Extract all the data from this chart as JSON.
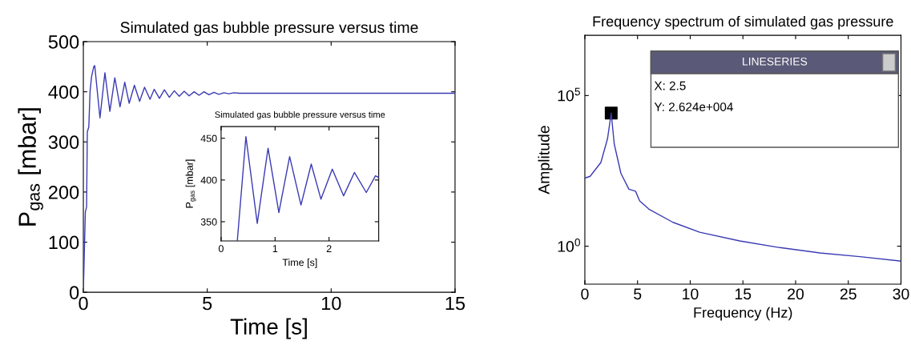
{
  "chart_data": [
    {
      "type": "line",
      "title": "Simulated gas bubble pressure versus time",
      "xlabel": "Time [s]",
      "ylabel": "P$_{gas}$ [mbar]",
      "xlim": [
        0,
        15
      ],
      "ylim": [
        0,
        500
      ],
      "xticks": [
        0,
        5,
        10,
        15
      ],
      "yticks": [
        0,
        100,
        200,
        300,
        400,
        500
      ],
      "grid": false,
      "marker": "none",
      "line_style": "solid",
      "series": [
        {
          "color": "#3a3ab4",
          "x": [
            0,
            0.08,
            0.13,
            0.16,
            0.22,
            0.27,
            0.33,
            0.42,
            0.46,
            0.67,
            0.87,
            1.07,
            1.27,
            1.48,
            1.67,
            1.85,
            2.06,
            2.27,
            2.47,
            2.69,
            2.86,
            3.07,
            3.27,
            3.47,
            3.67,
            3.87,
            4.07,
            4.27,
            4.47,
            4.67,
            4.87,
            5.07,
            5.27,
            5.47,
            5.67,
            5.87,
            6.07,
            6.3,
            15
          ],
          "values": [
            0,
            160,
            170,
            320,
            330,
            400,
            430,
            450,
            452,
            348,
            438,
            361,
            428,
            370,
            419,
            377,
            413,
            381,
            409,
            385,
            405,
            387,
            404,
            389,
            402,
            391,
            401,
            392,
            400,
            393,
            400,
            394,
            399,
            395,
            398,
            396,
            398,
            397,
            397
          ]
        }
      ]
    },
    {
      "type": "line",
      "title": "Simulated gas bubble pressure versus time",
      "xlabel": "Time [s]",
      "ylabel": "P$_{gas}$ [mbar]",
      "xlim": [
        0,
        2.92
      ],
      "ylim": [
        327,
        464
      ],
      "xticks": [
        0,
        1,
        2
      ],
      "yticks": [
        350,
        400,
        450
      ],
      "grid": false,
      "marker": "none",
      "line_style": "solid",
      "series": [
        {
          "color": "#3a3ab4",
          "x": [
            0.3,
            0.46,
            0.67,
            0.87,
            1.07,
            1.27,
            1.48,
            1.67,
            1.85,
            2.06,
            2.27,
            2.47,
            2.69,
            2.86,
            2.92
          ],
          "values": [
            327,
            452,
            348,
            438,
            361,
            428,
            370,
            419,
            377,
            413,
            381,
            409,
            385,
            405,
            403
          ]
        }
      ]
    },
    {
      "type": "line",
      "title": "Frequency spectrum of simulated gas pressure",
      "xlabel": "Frequency (Hz)",
      "ylabel": "Amplitude",
      "log": "y",
      "xlim": [
        0,
        30
      ],
      "ylim": [
        0.055,
        10000000
      ],
      "xticks": [
        0,
        5,
        10,
        15,
        20,
        25,
        30
      ],
      "yticks": [
        {
          "value": 1,
          "label": "10$^{0}$"
        },
        {
          "value": 100000,
          "label": "10$^{5}$"
        }
      ],
      "grid": false,
      "marker": "none",
      "line_style": "solid",
      "annotations": [
        "LINESERIES",
        "X: 2.5",
        "Y: 2.624e+004"
      ],
      "series": [
        {
          "color": "#3a3ab4",
          "x": [
            0,
            0.5,
            1.52,
            2.15,
            2.5,
            2.79,
            3.42,
            4.18,
            4.81,
            5.2,
            6.08,
            8.36,
            10.9,
            14.7,
            18.5,
            22.3,
            26.1,
            30
          ],
          "values": [
            182,
            209,
            600,
            3700,
            26240,
            2450,
            263,
            78,
            67,
            32,
            17,
            6.2,
            2.9,
            1.5,
            0.9,
            0.6,
            0.45,
            0.32
          ]
        },
        {
          "type": "scatter",
          "marker": "square",
          "color": "#000000",
          "x": [
            2.5
          ],
          "values": [
            26240
          ]
        }
      ]
    }
  ]
}
